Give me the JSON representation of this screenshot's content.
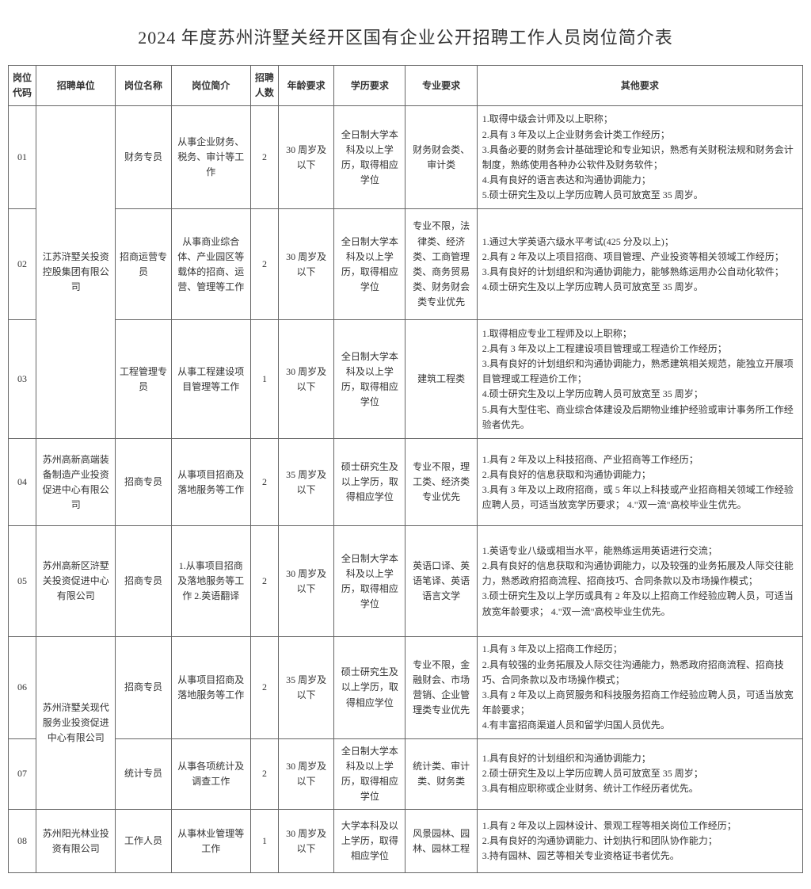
{
  "title": "2024 年度苏州浒墅关经开区国有企业公开招聘工作人员岗位简介表",
  "headers": {
    "code": "岗位代码",
    "unit": "招聘单位",
    "post": "岗位名称",
    "desc": "岗位简介",
    "num": "招聘人数",
    "age": "年龄要求",
    "edu": "学历要求",
    "major": "专业要求",
    "other": "其他要求"
  },
  "rows": [
    {
      "code": "01",
      "unit": "江苏浒墅关投资控股集团有限公司",
      "post": "财务专员",
      "desc": "从事企业财务、税务、审计等工作",
      "num": "2",
      "age": "30 周岁及以下",
      "edu": "全日制大学本科及以上学 历，取得相应学位",
      "major": "财务财会类、审计类",
      "other": "1.取得中级会计师及以上职称；\n2.具有 3 年及以上企业财务会计类工作经历；\n3.具备必要的财务会计基础理论和专业知识，熟悉有关财税法规和财务会计制度，熟练使用各种办公软件及财务软件；\n4.具有良好的语言表达和沟通协调能力；\n5.硕士研究生及以上学历应聘人员可放宽至 35 周岁。"
    },
    {
      "code": "02",
      "post": "招商运营专员",
      "desc": "从事商业综合体、产业园区等载体的招商、运营、管理等工作",
      "num": "2",
      "age": "30 周岁及以下",
      "edu": "全日制大学本科及以上学历，取得相应学位",
      "major": "专业不限，法律类、经济类、工商管理类、商务贸易类、财务财会类专业优先",
      "other": "1.通过大学英语六级水平考试(425 分及以上)；\n2.具有 2 年及以上项目招商、项目管理、产业投资等相关领域工作经历；\n3.具有良好的计划组织和沟通协调能力，能够熟练运用办公自动化软件；\n4.硕士研究生及以上学历应聘人员可放宽至 35 周岁。"
    },
    {
      "code": "03",
      "post": "工程管理专员",
      "desc": "从事工程建设项目管理等工作",
      "num": "1",
      "age": "30 周岁及以下",
      "edu": "全日制大学本科及以上学历，取得相应学位",
      "major": "建筑工程类",
      "other": "1.取得相应专业工程师及以上职称；\n2.具有 3 年及以上工程建设项目管理或工程造价工作经历；\n3.具有良好的计划组织和沟通协调能力，熟悉建筑相关规范，能独立开展项目管理或工程造价工作；\n4.硕士研究生及以上学历应聘人员可放宽至 35 周岁；\n5.具有大型住宅、商业综合体建设及后期物业维护经验或审计事务所工作经验者优先。"
    },
    {
      "code": "04",
      "unit": "苏州高新高端装备制造产业投资促进中心有限公司",
      "post": "招商专员",
      "desc": "从事项目招商及落地服务等工作",
      "num": "2",
      "age": "35 周岁及以下",
      "edu": "硕士研究生及以上学历，取得相应学位",
      "major": "专业不限，理工类、经济类专业优先",
      "other": "1.具有 2 年及以上科技招商、产业招商等工作经历；\n2.具有良好的信息获取和沟通协调能力；\n3.具有 3 年及以上政府招商，或 5 年以上科技或产业招商相关领域工作经验应聘人员，可适当放宽学历要求； 4.\"双一流\"高校毕业生优先。"
    },
    {
      "code": "05",
      "unit": "苏州高新区浒墅关投资促进中心有限公司",
      "post": "招商专员",
      "desc": "1.从事项目招商及落地服务等工作 2.英语翻译",
      "num": "2",
      "age": "30 周岁及以下",
      "edu": "全日制大学本科及以上学 历，取得相应学位",
      "major": "英语口译、英语笔译、英语语言文学",
      "other": "1.英语专业八级或相当水平，能熟练运用英语进行交流；\n2.具有良好的信息获取和沟通协调能力，以及较强的业务拓展及人际交往能力，熟悉政府招商流程、招商技巧、合同条款以及市场操作模式；\n3.硕士研究生及以上学历或具有 2 年及以上招商工作经验应聘人员，可适当放宽年龄要求；             4.\"双一流\"高校毕业生优先。"
    },
    {
      "code": "06",
      "unit": "苏州浒墅关现代服务业投资促进中心有限公司",
      "post": "招商专员",
      "desc": "从事项目招商及落地服务等工作",
      "num": "2",
      "age": "35 周岁及以下",
      "edu": "硕士研究生及以上学历，取得相应学位",
      "major": "专业不限，金融财会、市场营销、企业管理类专业优先",
      "other": "1.具有 3 年及以上招商工作经历；\n2.具有较强的业务拓展及人际交往沟通能力，熟悉政府招商流程、招商技巧、合同条款以及市场操作模式；\n3.具有 2 年及以上商贸服务和科技服务招商工作经验应聘人员，可适当放宽年龄要求；\n4.有丰富招商渠道人员和留学归国人员优先。"
    },
    {
      "code": "07",
      "post": "统计专员",
      "desc": "从事各项统计及调查工作",
      "num": "2",
      "age": "30 周岁及以下",
      "edu": "全日制大学本科及以上学 历，取得相应学位",
      "major": "统计类、审计类、财务类",
      "other": "1.具有良好的计划组织和沟通协调能力；\n2.硕士研究生及以上学历应聘人员可放宽至 35 周岁；\n3.具有相应职称或企业财务、统计工作经历者优先。"
    },
    {
      "code": "08",
      "unit": "苏州阳光林业投资有限公司",
      "post": "工作人员",
      "desc": "从事林业管理等工作",
      "num": "1",
      "age": "30 周岁及以下",
      "edu": "大学本科及以上学历，取得相应学位",
      "major": "风景园林、园林、园林工程",
      "other": "1.具有 2 年及以上园林设计、景观工程等相关岗位工作经历；\n2.具有良好的沟通协调能力、计划执行和团队协作能力；\n3.持有园林、园艺等相关专业资格证书者优先。"
    }
  ]
}
